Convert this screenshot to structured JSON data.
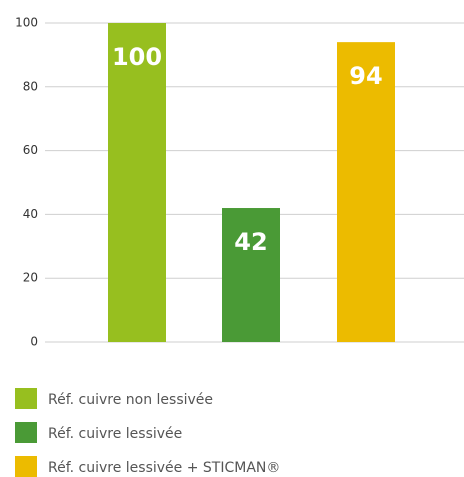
{
  "chart_data": {
    "type": "bar",
    "categories": [
      "Réf. cuivre non lessivée",
      "Réf. cuivre lessivée",
      "Réf. cuivre lessivée + STICMAN®"
    ],
    "values": [
      100,
      42,
      94
    ],
    "colors": [
      "#97bf1f",
      "#4a9a36",
      "#ecbb00"
    ],
    "ylim": [
      0,
      100
    ],
    "yticks": [
      0,
      20,
      40,
      60,
      80,
      100
    ],
    "grid": true,
    "legend": "bottom"
  }
}
